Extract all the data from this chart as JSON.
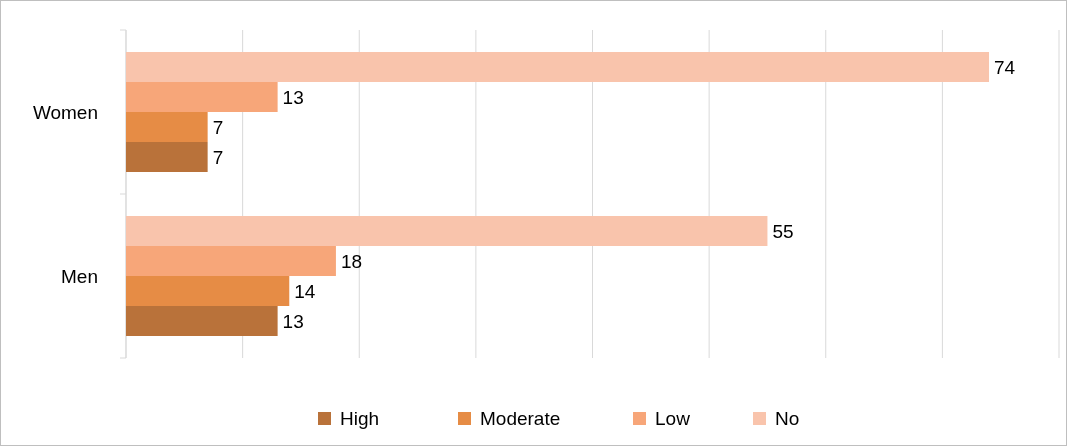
{
  "chart_data": {
    "type": "bar",
    "orientation": "horizontal",
    "categories": [
      "Women",
      "Men"
    ],
    "series": [
      {
        "name": "High",
        "color": "#b9723a",
        "values": [
          7,
          13
        ]
      },
      {
        "name": "Moderate",
        "color": "#e68c45",
        "values": [
          7,
          14
        ]
      },
      {
        "name": "Low",
        "color": "#f7a679",
        "values": [
          13,
          18
        ]
      },
      {
        "name": "No",
        "color": "#f9c4ac",
        "values": [
          74,
          55
        ]
      }
    ],
    "xlim": [
      0,
      80
    ],
    "xticks": [
      {
        "value": 0,
        "label": null
      },
      {
        "value": 10,
        "label": null
      },
      {
        "value": 20,
        "label": null
      },
      {
        "value": 30,
        "label": null
      },
      {
        "value": 40,
        "label": null
      },
      {
        "value": 50,
        "label": null
      },
      {
        "value": 60,
        "label": null
      },
      {
        "value": 70,
        "label": null
      },
      {
        "value": 80,
        "label": null
      }
    ],
    "grid": "x",
    "legend": "bottom",
    "data_labels": true,
    "tick_labels": "y"
  }
}
